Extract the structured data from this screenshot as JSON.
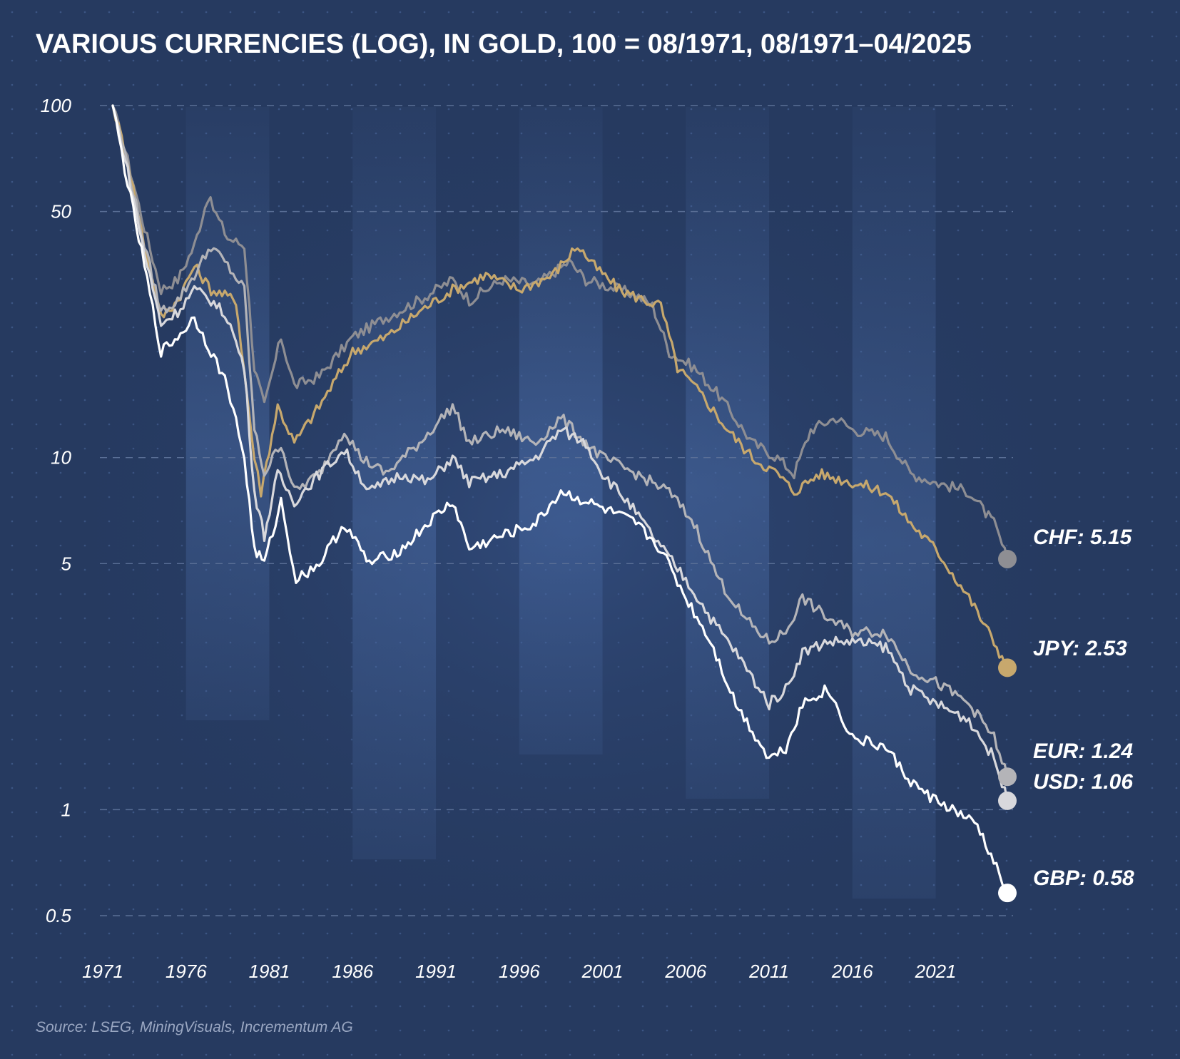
{
  "chart_data": {
    "type": "line",
    "title": "VARIOUS CURRENCIES (LOG), IN GOLD, 100 = 08/1971, 08/1971–04/2025",
    "source": "Source: LSEG, MiningVisuals, Incrementum AG",
    "y_scale": "log",
    "ylim": [
      0.5,
      100
    ],
    "xlim": [
      1971.6,
      2025.3
    ],
    "x_ticks": [
      "1971",
      "1976",
      "1981",
      "1986",
      "1991",
      "1996",
      "2001",
      "2006",
      "2011",
      "2016",
      "2021"
    ],
    "y_ticks": [
      {
        "value": 100,
        "label": "100"
      },
      {
        "value": 50,
        "label": "50"
      },
      {
        "value": 10,
        "label": "10"
      },
      {
        "value": 5,
        "label": "5"
      },
      {
        "value": 1,
        "label": "1"
      },
      {
        "value": 0.5,
        "label": "0.5"
      }
    ],
    "grid": true,
    "background": "#263a60",
    "series": [
      {
        "name": "CHF",
        "end_label": "CHF: 5.15",
        "color": "#8e8e93",
        "marker_color": "#8e8e93",
        "points": [
          [
            1971.6,
            100
          ],
          [
            1972.5,
            70
          ],
          [
            1973.5,
            45
          ],
          [
            1974.5,
            30
          ],
          [
            1975.5,
            32
          ],
          [
            1976.5,
            40
          ],
          [
            1977.3,
            55
          ],
          [
            1978.5,
            42
          ],
          [
            1979.5,
            40
          ],
          [
            1980.1,
            18
          ],
          [
            1980.7,
            14
          ],
          [
            1981.7,
            22
          ],
          [
            1982.5,
            16
          ],
          [
            1984,
            17
          ],
          [
            1986,
            22
          ],
          [
            1988,
            25
          ],
          [
            1990,
            28
          ],
          [
            1992,
            32
          ],
          [
            1993,
            28
          ],
          [
            1995,
            32
          ],
          [
            1997,
            31
          ],
          [
            1999,
            36
          ],
          [
            2000,
            32
          ],
          [
            2001,
            31
          ],
          [
            2003,
            29
          ],
          [
            2004,
            27
          ],
          [
            2005,
            20
          ],
          [
            2006.5,
            18
          ],
          [
            2008,
            15
          ],
          [
            2010,
            11
          ],
          [
            2011.5,
            10
          ],
          [
            2012.5,
            9
          ],
          [
            2013.5,
            12
          ],
          [
            2015,
            13
          ],
          [
            2016,
            12
          ],
          [
            2018,
            11.5
          ],
          [
            2019.5,
            9
          ],
          [
            2021,
            8.5
          ],
          [
            2023,
            8
          ],
          [
            2024.5,
            6.5
          ],
          [
            2025.3,
            5.15
          ]
        ]
      },
      {
        "name": "JPY",
        "end_label": "JPY: 2.53",
        "color": "#c7a86d",
        "marker_color": "#c7a86d",
        "points": [
          [
            1971.6,
            100
          ],
          [
            1972.5,
            70
          ],
          [
            1973.5,
            40
          ],
          [
            1974.5,
            25
          ],
          [
            1975.5,
            28
          ],
          [
            1976.5,
            35
          ],
          [
            1977.5,
            30
          ],
          [
            1979,
            28
          ],
          [
            1980.1,
            10
          ],
          [
            1980.5,
            8
          ],
          [
            1981.5,
            14
          ],
          [
            1982.5,
            11
          ],
          [
            1984,
            14
          ],
          [
            1986,
            20
          ],
          [
            1988,
            22
          ],
          [
            1990,
            26
          ],
          [
            1992,
            30
          ],
          [
            1994,
            33
          ],
          [
            1996,
            30
          ],
          [
            1998,
            33
          ],
          [
            1999.5,
            40
          ],
          [
            2000.5,
            35
          ],
          [
            2002,
            30
          ],
          [
            2003.5,
            28
          ],
          [
            2004.5,
            27
          ],
          [
            2005.5,
            18
          ],
          [
            2007,
            15
          ],
          [
            2008.5,
            12
          ],
          [
            2010,
            10
          ],
          [
            2011.5,
            9
          ],
          [
            2012.5,
            8
          ],
          [
            2014,
            9
          ],
          [
            2016,
            8.5
          ],
          [
            2018,
            8
          ],
          [
            2019.5,
            6.5
          ],
          [
            2021,
            5.5
          ],
          [
            2023,
            4
          ],
          [
            2024.5,
            3
          ],
          [
            2025.3,
            2.53
          ]
        ]
      },
      {
        "name": "EUR",
        "end_label": "EUR: 1.24",
        "color": "#b4b4b8",
        "marker_color": "#b4b4b8",
        "points": [
          [
            1971.6,
            100
          ],
          [
            1972.5,
            68
          ],
          [
            1973.5,
            40
          ],
          [
            1974.5,
            26
          ],
          [
            1975.5,
            28
          ],
          [
            1976.5,
            33
          ],
          [
            1977.5,
            40
          ],
          [
            1978.5,
            35
          ],
          [
            1979.5,
            30
          ],
          [
            1980.1,
            12
          ],
          [
            1980.7,
            9
          ],
          [
            1981.7,
            11
          ],
          [
            1982.5,
            8
          ],
          [
            1984,
            9
          ],
          [
            1985.5,
            12
          ],
          [
            1986.5,
            10
          ],
          [
            1988,
            9
          ],
          [
            1990,
            11
          ],
          [
            1992,
            14
          ],
          [
            1993,
            11
          ],
          [
            1995,
            12
          ],
          [
            1997,
            11
          ],
          [
            1998.5,
            13
          ],
          [
            2000,
            11
          ],
          [
            2001,
            10
          ],
          [
            2003,
            9
          ],
          [
            2005,
            8
          ],
          [
            2006.5,
            6.5
          ],
          [
            2008,
            4.5
          ],
          [
            2009.5,
            3.5
          ],
          [
            2011,
            3
          ],
          [
            2012,
            3.2
          ],
          [
            2013,
            4
          ],
          [
            2014.5,
            3.5
          ],
          [
            2016,
            3.2
          ],
          [
            2018,
            3.2
          ],
          [
            2019.5,
            2.5
          ],
          [
            2021,
            2.3
          ],
          [
            2023,
            2
          ],
          [
            2024.5,
            1.6
          ],
          [
            2025.3,
            1.24
          ]
        ]
      },
      {
        "name": "USD",
        "end_label": "USD: 1.06",
        "color": "#d8d8dc",
        "marker_color": "#d8d8dc",
        "points": [
          [
            1971.6,
            100
          ],
          [
            1972.5,
            65
          ],
          [
            1973.5,
            38
          ],
          [
            1974.5,
            24
          ],
          [
            1975.5,
            26
          ],
          [
            1976.5,
            30
          ],
          [
            1977.5,
            28
          ],
          [
            1978.5,
            25
          ],
          [
            1979.5,
            18
          ],
          [
            1980.1,
            8
          ],
          [
            1980.7,
            6
          ],
          [
            1981.5,
            9
          ],
          [
            1982.5,
            7.5
          ],
          [
            1984,
            9
          ],
          [
            1985.5,
            10.5
          ],
          [
            1987,
            8
          ],
          [
            1989,
            9
          ],
          [
            1990.5,
            8.5
          ],
          [
            1992,
            10
          ],
          [
            1993,
            8.5
          ],
          [
            1995,
            9
          ],
          [
            1997,
            10
          ],
          [
            1998.5,
            12
          ],
          [
            2000,
            11
          ],
          [
            2001,
            9
          ],
          [
            2002.5,
            7.5
          ],
          [
            2004,
            6
          ],
          [
            2006,
            4.5
          ],
          [
            2007.5,
            3.5
          ],
          [
            2009,
            2.8
          ],
          [
            2011,
            2
          ],
          [
            2012,
            2.2
          ],
          [
            2013,
            2.8
          ],
          [
            2014.5,
            3
          ],
          [
            2016,
            3
          ],
          [
            2018,
            2.9
          ],
          [
            2019.5,
            2.2
          ],
          [
            2021,
            2
          ],
          [
            2023,
            1.8
          ],
          [
            2024.5,
            1.4
          ],
          [
            2025.3,
            1.06
          ]
        ]
      },
      {
        "name": "GBP",
        "end_label": "GBP: 0.58",
        "color": "#ffffff",
        "marker_color": "#ffffff",
        "points": [
          [
            1971.6,
            100
          ],
          [
            1972.5,
            60
          ],
          [
            1973.5,
            35
          ],
          [
            1974.5,
            20
          ],
          [
            1975.5,
            22
          ],
          [
            1976.5,
            25
          ],
          [
            1977.5,
            20
          ],
          [
            1978.5,
            16
          ],
          [
            1979.5,
            10
          ],
          [
            1980.1,
            5.5
          ],
          [
            1980.7,
            5
          ],
          [
            1981.7,
            7.5
          ],
          [
            1982.6,
            4.5
          ],
          [
            1984,
            5
          ],
          [
            1985.5,
            6.5
          ],
          [
            1987,
            5
          ],
          [
            1989,
            5.5
          ],
          [
            1990.5,
            6.5
          ],
          [
            1992,
            7.5
          ],
          [
            1993,
            5.5
          ],
          [
            1995,
            6
          ],
          [
            1997,
            6.5
          ],
          [
            1998.5,
            8
          ],
          [
            2000,
            7.5
          ],
          [
            2001.5,
            7
          ],
          [
            2003,
            6.5
          ],
          [
            2004.5,
            5.5
          ],
          [
            2006,
            4
          ],
          [
            2007.5,
            3
          ],
          [
            2009,
            2
          ],
          [
            2011,
            1.4
          ],
          [
            2012,
            1.5
          ],
          [
            2013,
            2
          ],
          [
            2014.5,
            2.2
          ],
          [
            2016,
            1.6
          ],
          [
            2018,
            1.5
          ],
          [
            2019.5,
            1.2
          ],
          [
            2020.5,
            1.1
          ],
          [
            2022,
            1
          ],
          [
            2023.5,
            0.9
          ],
          [
            2025.3,
            0.58
          ]
        ]
      }
    ]
  }
}
